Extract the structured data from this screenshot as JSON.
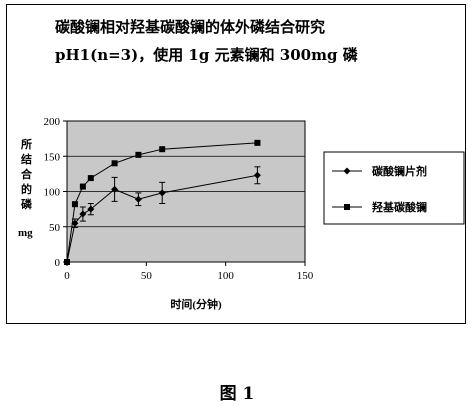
{
  "header": {
    "title_line1": "碳酸镧相对羟基碳酸镧的体外磷结合研究",
    "title_line2": "pH1(n=3)，使用 1g 元素镧和 300mg 磷"
  },
  "figure_caption": "图 1",
  "colors": {
    "plot_background": "#c8c8c8",
    "series_line": "#000000"
  },
  "chart_data": {
    "type": "line",
    "title": "碳酸镧相对羟基碳酸镧的体外磷结合研究 pH1(n=3)，使用 1g 元素镧和 300mg 磷",
    "xlabel": "时间(分钟)",
    "ylabel_chars": [
      "所",
      "结",
      "合",
      "的",
      "磷"
    ],
    "ylabel_unit": "mg",
    "xlim": [
      0,
      150
    ],
    "ylim": [
      0,
      200
    ],
    "x_ticks": [
      0,
      50,
      100,
      150
    ],
    "y_ticks": [
      0,
      50,
      100,
      150,
      200
    ],
    "grid": "horizontal",
    "legend_position": "right",
    "series": [
      {
        "name": "碳酸镧片剂",
        "marker": "diamond",
        "x": [
          0,
          5,
          10,
          15,
          30,
          45,
          60,
          120
        ],
        "y": [
          0,
          55,
          68,
          75,
          103,
          89,
          98,
          123
        ],
        "error": [
          0,
          6,
          10,
          8,
          17,
          9,
          15,
          12
        ]
      },
      {
        "name": "羟基碳酸镧",
        "marker": "square",
        "x": [
          0,
          5,
          10,
          15,
          30,
          45,
          60,
          120
        ],
        "y": [
          0,
          82,
          107,
          119,
          140,
          152,
          160,
          169
        ],
        "error": [
          0,
          0,
          0,
          0,
          0,
          0,
          0,
          2
        ]
      }
    ]
  }
}
